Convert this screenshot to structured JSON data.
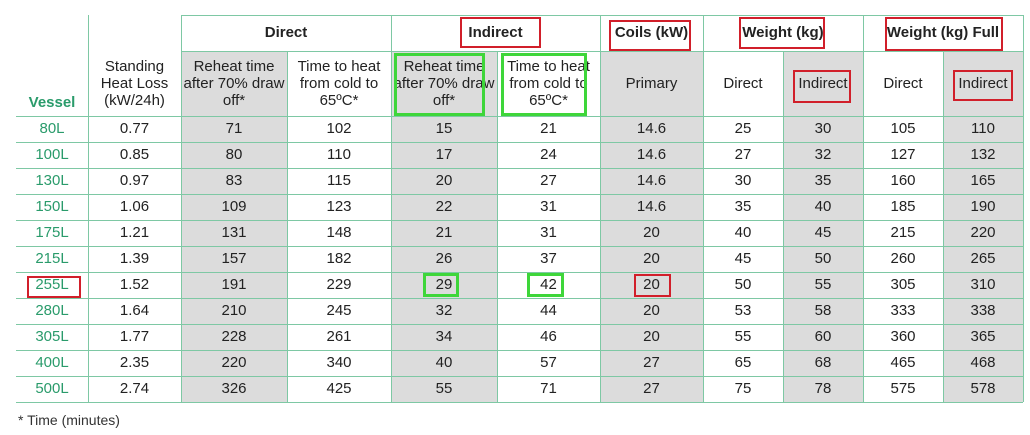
{
  "header": {
    "vessel": "Vessel",
    "standing": "Standing Heat Loss (kW/24h)",
    "groups": [
      {
        "label": "Direct"
      },
      {
        "label": "Indirect"
      },
      {
        "label": "Coils (kW)"
      },
      {
        "label": "Weight (kg)"
      },
      {
        "label": "Weight (kg) Full"
      }
    ],
    "subs": [
      "Reheat time after 70% draw off*",
      "Time to heat from cold to 65ºC*",
      "Reheat time after 70% draw off*",
      "Time to heat from cold to 65ºC*",
      "Primary",
      "Direct",
      "Indirect",
      "Direct",
      "Indirect"
    ]
  },
  "rows": [
    {
      "vessel": "80L",
      "vals": [
        "0.77",
        "71",
        "102",
        "15",
        "21",
        "14.6",
        "25",
        "30",
        "105",
        "110"
      ]
    },
    {
      "vessel": "100L",
      "vals": [
        "0.85",
        "80",
        "110",
        "17",
        "24",
        "14.6",
        "27",
        "32",
        "127",
        "132"
      ]
    },
    {
      "vessel": "130L",
      "vals": [
        "0.97",
        "83",
        "115",
        "20",
        "27",
        "14.6",
        "30",
        "35",
        "160",
        "165"
      ]
    },
    {
      "vessel": "150L",
      "vals": [
        "1.06",
        "109",
        "123",
        "22",
        "31",
        "14.6",
        "35",
        "40",
        "185",
        "190"
      ]
    },
    {
      "vessel": "175L",
      "vals": [
        "1.21",
        "131",
        "148",
        "21",
        "31",
        "20",
        "40",
        "45",
        "215",
        "220"
      ]
    },
    {
      "vessel": "215L",
      "vals": [
        "1.39",
        "157",
        "182",
        "26",
        "37",
        "20",
        "45",
        "50",
        "260",
        "265"
      ]
    },
    {
      "vessel": "255L",
      "vals": [
        "1.52",
        "191",
        "229",
        "29",
        "42",
        "20",
        "50",
        "55",
        "305",
        "310"
      ]
    },
    {
      "vessel": "280L",
      "vals": [
        "1.64",
        "210",
        "245",
        "32",
        "44",
        "20",
        "53",
        "58",
        "333",
        "338"
      ]
    },
    {
      "vessel": "305L",
      "vals": [
        "1.77",
        "228",
        "261",
        "34",
        "46",
        "20",
        "55",
        "60",
        "360",
        "365"
      ]
    },
    {
      "vessel": "400L",
      "vals": [
        "2.35",
        "220",
        "340",
        "40",
        "57",
        "27",
        "65",
        "68",
        "465",
        "468"
      ]
    },
    {
      "vessel": "500L",
      "vals": [
        "2.74",
        "326",
        "425",
        "55",
        "71",
        "27",
        "75",
        "78",
        "575",
        "578"
      ]
    }
  ],
  "footnote": "* Time (minutes)",
  "colors": {
    "accent_green": "#2a9b6b",
    "highlight_red": "#d11f2a",
    "highlight_green": "#3ed63a",
    "shade": "#dcdcdc"
  }
}
